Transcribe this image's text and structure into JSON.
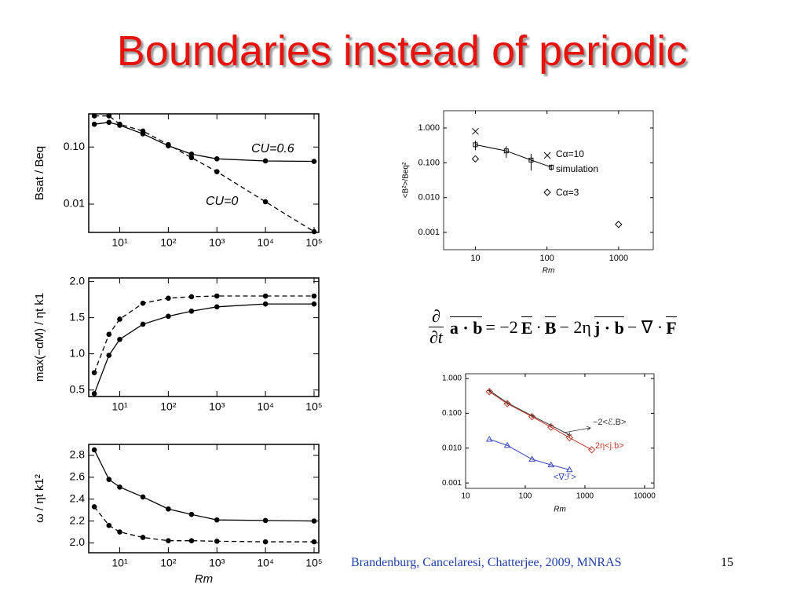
{
  "title": "Boundaries instead of periodic",
  "citation": "Brandenburg, Cancelaresi, Chatterjee, 2009, MNRAS",
  "page_number": "15",
  "equation": {
    "num": "∂",
    "den": "∂t",
    "lhs": "a · b",
    "eq": "= −2",
    "e": "E",
    "dot1": "·",
    "b1": "B",
    "mid": "− 2η",
    "jb": "j · b",
    "end": "− ∇ ·",
    "f": "F"
  },
  "chart_data": [
    {
      "type": "line",
      "xlog": true,
      "ylog": true,
      "ylabel": "Bsat / Beq",
      "x": [
        3,
        6,
        10,
        30,
        100,
        300,
        1000,
        10000,
        100000
      ],
      "xlim": [
        2.3,
        125000
      ],
      "ylim": [
        0.0032,
        0.38
      ],
      "xticks": [
        {
          "value": 10,
          "label": "10¹"
        },
        {
          "value": 100,
          "label": "10²"
        },
        {
          "value": 1000,
          "label": "10³"
        },
        {
          "value": 10000,
          "label": "10⁴"
        },
        {
          "value": 100000,
          "label": "10⁵"
        }
      ],
      "yticks": [
        {
          "value": 0.01,
          "label": "0.01"
        },
        {
          "value": 0.1,
          "label": "0.10"
        }
      ],
      "series": [
        {
          "name": "CU=0.6",
          "color": "#000000",
          "linestyle": "solid",
          "marker": "dot",
          "values": [
            0.25,
            0.27,
            0.24,
            0.17,
            0.105,
            0.075,
            0.062,
            0.057,
            0.056
          ]
        },
        {
          "name": "CU=0",
          "color": "#000000",
          "linestyle": "dashed",
          "marker": "dot",
          "values": [
            0.35,
            0.35,
            0.25,
            0.19,
            0.11,
            0.065,
            0.037,
            0.011,
            0.0033
          ]
        }
      ]
    },
    {
      "type": "line",
      "xlog": true,
      "ylog": false,
      "ylabel": "max(−αM) / ηt k1",
      "x": [
        3,
        6,
        10,
        30,
        100,
        300,
        1000,
        10000,
        100000
      ],
      "xlim": [
        2.3,
        125000
      ],
      "ylim": [
        0.41,
        2.05
      ],
      "xticks": [
        {
          "value": 10,
          "label": "10¹"
        },
        {
          "value": 100,
          "label": "10²"
        },
        {
          "value": 1000,
          "label": "10³"
        },
        {
          "value": 10000,
          "label": "10⁴"
        },
        {
          "value": 100000,
          "label": "10⁵"
        }
      ],
      "yticks": [
        0.5,
        {
          "value": 1,
          "label": "1.0"
        },
        1.5,
        {
          "value": 2,
          "label": "2.0"
        }
      ],
      "series": [
        {
          "color": "#000000",
          "linestyle": "solid",
          "marker": "dot",
          "values": [
            0.45,
            0.98,
            1.2,
            1.41,
            1.52,
            1.59,
            1.65,
            1.69,
            1.69
          ]
        },
        {
          "color": "#000000",
          "linestyle": "dashed",
          "marker": "dot",
          "values": [
            0.74,
            1.27,
            1.48,
            1.7,
            1.77,
            1.79,
            1.8,
            1.8,
            1.8
          ]
        }
      ]
    },
    {
      "type": "line",
      "xlog": true,
      "ylog": false,
      "ylabel": "ω / ηt k1²",
      "xlabel": "Rm",
      "x": [
        3,
        6,
        10,
        30,
        100,
        300,
        1000,
        10000,
        100000
      ],
      "xlim": [
        2.3,
        125000
      ],
      "ylim": [
        1.91,
        2.9
      ],
      "xticks": [
        {
          "value": 10,
          "label": "10¹"
        },
        {
          "value": 100,
          "label": "10²"
        },
        {
          "value": 1000,
          "label": "10³"
        },
        {
          "value": 10000,
          "label": "10⁴"
        },
        {
          "value": 100000,
          "label": "10⁵"
        }
      ],
      "yticks": [
        {
          "value": 2,
          "label": "2.0"
        },
        2.2,
        2.4,
        2.6,
        2.8
      ],
      "series": [
        {
          "color": "#000000",
          "linestyle": "solid",
          "marker": "dot",
          "values": [
            2.85,
            2.58,
            2.51,
            2.42,
            2.31,
            2.26,
            2.21,
            2.205,
            2.2
          ]
        },
        {
          "color": "#000000",
          "linestyle": "dashed",
          "marker": "dot",
          "values": [
            2.33,
            2.16,
            2.1,
            2.05,
            2.02,
            2.02,
            2.015,
            2.01,
            2.01
          ]
        }
      ]
    },
    {
      "type": "line",
      "xlog": true,
      "ylog": true,
      "ylabel": "<B²>/Beq²",
      "xlabel": "Rm",
      "xlim": [
        3.6,
        3050
      ],
      "ylim": [
        0.00032,
        3.14
      ],
      "xticks": [
        10,
        100,
        1000
      ],
      "yticks": [
        0.001,
        {
          "value": 0.01,
          "label": "0.010"
        },
        {
          "value": 0.1,
          "label": "0.100"
        },
        {
          "value": 1,
          "label": "1.000"
        }
      ],
      "series": [
        {
          "name": "Cα=10",
          "color": "#000000",
          "line": false,
          "marker": "cross",
          "x": [
            10
          ],
          "values": [
            0.8
          ]
        },
        {
          "name": "simulation",
          "color": "#000000",
          "linestyle": "solid",
          "marker": "square",
          "x": [
            10,
            27,
            60,
            115
          ],
          "values": [
            0.33,
            0.22,
            0.12,
            0.075
          ],
          "errors": [
            0.1,
            0.08,
            0.06,
            0.015
          ]
        },
        {
          "name": "Cα=3",
          "color": "#000000",
          "line": false,
          "marker": "diamond",
          "x": [
            10,
            1000
          ],
          "values": [
            0.13,
            0.0017
          ]
        }
      ]
    },
    {
      "type": "line",
      "xlog": true,
      "ylog": true,
      "xlabel": "Rm",
      "xlim": [
        10,
        14400
      ],
      "ylim": [
        0.0007,
        1.37
      ],
      "xticks": [
        10,
        100,
        1000,
        10000
      ],
      "yticks": [
        0.001,
        {
          "value": 0.01,
          "label": "0.010"
        },
        {
          "value": 0.1,
          "label": "0.100"
        },
        {
          "value": 1,
          "label": "1.000"
        }
      ],
      "series": [
        {
          "name": "−2<ℰ.B>",
          "color": "#333333",
          "linestyle": "solid",
          "marker": "plus",
          "x": [
            25,
            50,
            130,
            270,
            550
          ],
          "values": [
            0.45,
            0.2,
            0.085,
            0.045,
            0.024
          ]
        },
        {
          "name": "2η<j.b>",
          "color": "#c0392b",
          "linestyle": "solid",
          "marker": "diamond",
          "x": [
            25,
            50,
            130,
            270,
            550,
            1300
          ],
          "values": [
            0.42,
            0.19,
            0.08,
            0.04,
            0.02,
            0.009
          ]
        },
        {
          "name": "<∇ℱ>",
          "color": "#3848b8",
          "linestyle": "solid",
          "marker": "triangle",
          "x": [
            25,
            50,
            130,
            270,
            550
          ],
          "values": [
            0.018,
            0.012,
            0.0048,
            0.0033,
            0.0024
          ]
        }
      ]
    }
  ]
}
